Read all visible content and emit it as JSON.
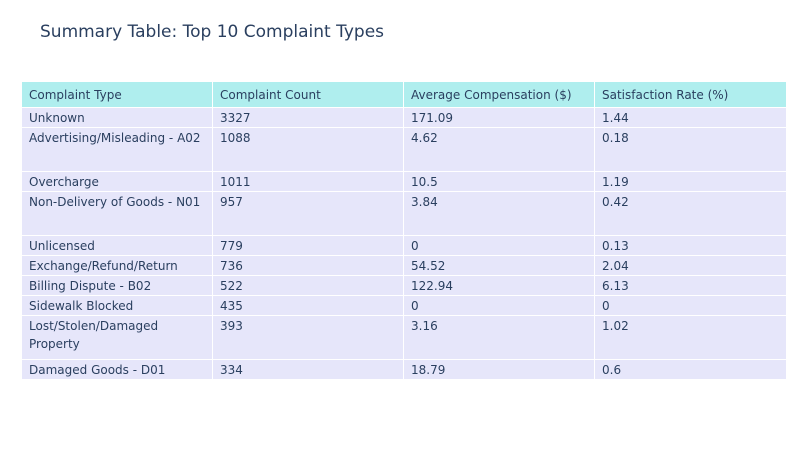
{
  "chart_data": {
    "type": "table",
    "title": "Summary Table: Top 10 Complaint Types",
    "columns": [
      "Complaint Type",
      "Complaint Count",
      "Average Compensation ($)",
      "Satisfaction Rate (%)"
    ],
    "rows": [
      [
        "Unknown",
        "3327",
        "171.09",
        "1.44"
      ],
      [
        "Advertising/Misleading - A02",
        "1088",
        "4.62",
        "0.18"
      ],
      [
        "Overcharge",
        "1011",
        "10.5",
        "1.19"
      ],
      [
        "Non-Delivery of Goods - N01",
        "957",
        "3.84",
        "0.42"
      ],
      [
        "Unlicensed",
        "779",
        "0",
        "0.13"
      ],
      [
        "Exchange/Refund/Return",
        "736",
        "54.52",
        "2.04"
      ],
      [
        "Billing Dispute - B02",
        "522",
        "122.94",
        "6.13"
      ],
      [
        "Sidewalk Blocked",
        "435",
        "0",
        "0"
      ],
      [
        "Lost/Stolen/Damaged Property",
        "393",
        "3.16",
        "1.02"
      ],
      [
        "Damaged Goods - D01",
        "334",
        "18.79",
        "0.6"
      ]
    ],
    "header_color": "#afeeee",
    "cell_color": "#e6e6fa",
    "text_color": "#2a3f5f"
  }
}
